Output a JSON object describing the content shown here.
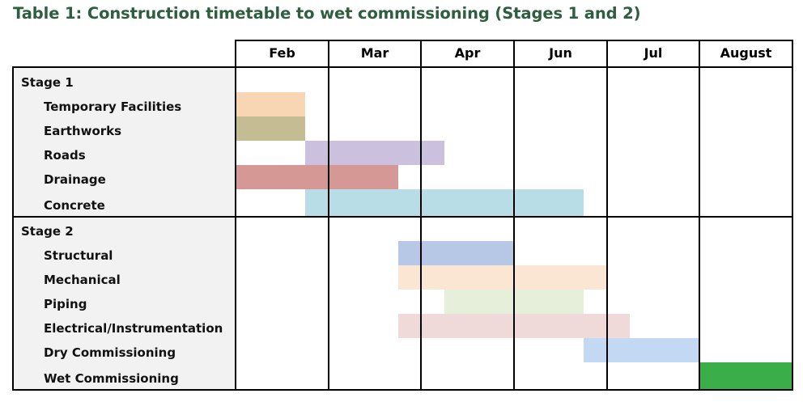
{
  "title": "Table 1: Construction timetable to wet commissioning (Stages 1 and 2)",
  "months": [
    "Feb",
    "Mar",
    "Apr",
    "Jun",
    "Jul",
    "August"
  ],
  "stages": [
    {
      "label": "Stage 1",
      "tasks": [
        {
          "label": "Temporary Facilities",
          "start": 0,
          "end": 0.75,
          "color": "#f8d5b3"
        },
        {
          "label": "Earthworks",
          "start": 0,
          "end": 0.75,
          "color": "#c4bc93"
        },
        {
          "label": "Roads",
          "start": 0.75,
          "end": 2.25,
          "color": "#cbc0dd"
        },
        {
          "label": "Drainage",
          "start": 0,
          "end": 1.75,
          "color": "#d69895"
        },
        {
          "label": "Concrete",
          "start": 0.75,
          "end": 3.75,
          "color": "#b9dde6"
        }
      ]
    },
    {
      "label": "Stage 2",
      "tasks": [
        {
          "label": "Structural",
          "start": 1.75,
          "end": 3.0,
          "color": "#b6c8e6"
        },
        {
          "label": "Mechanical",
          "start": 1.75,
          "end": 4.0,
          "color": "#fbe6d3"
        },
        {
          "label": "Piping",
          "start": 2.25,
          "end": 3.75,
          "color": "#e5efda"
        },
        {
          "label": "Electrical/Instrumentation",
          "start": 1.75,
          "end": 4.25,
          "color": "#efd9d9"
        },
        {
          "label": "Dry Commissioning",
          "start": 3.75,
          "end": 5.0,
          "color": "#c3d8f2"
        },
        {
          "label": "Wet Commissioning",
          "start": 5.0,
          "end": 6.0,
          "color": "#3aae48"
        }
      ]
    }
  ]
}
